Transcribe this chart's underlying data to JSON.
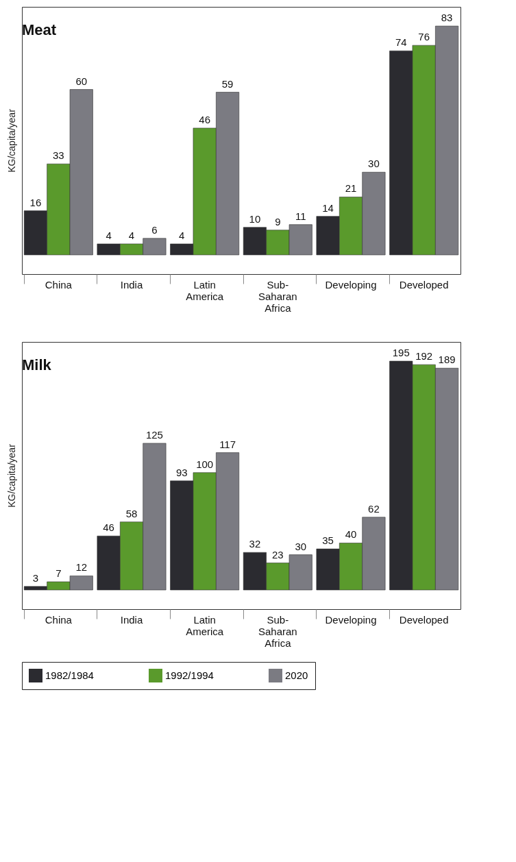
{
  "chart_data": [
    {
      "type": "bar",
      "title": "Meat",
      "ylabel": "KG/capita/year",
      "categories": [
        "China",
        "India",
        "Latin America",
        "Sub-Saharan Africa",
        "Developing",
        "Developed"
      ],
      "data_labels": true,
      "series": [
        {
          "color": "#2b2b30",
          "values": [
            16,
            4,
            4,
            10,
            14,
            74
          ]
        },
        {
          "color": "#5a9a2c",
          "values": [
            33,
            4,
            46,
            9,
            21,
            76
          ]
        },
        {
          "color": "#7b7b82",
          "values": [
            60,
            6,
            59,
            11,
            30,
            83
          ]
        }
      ]
    },
    {
      "type": "bar",
      "title": "Milk",
      "ylabel": "KG/capita/year",
      "categories": [
        "China",
        "India",
        "Latin America",
        "Sub-Saharan Africa",
        "Developing",
        "Developed"
      ],
      "data_labels": true,
      "legend": "bottom",
      "series": [
        {
          "name": "1982/1984",
          "color": "#2b2b30",
          "values": [
            3,
            46,
            93,
            32,
            35,
            195
          ]
        },
        {
          "name": "1992/1994",
          "color": "#5a9a2c",
          "values": [
            7,
            58,
            100,
            23,
            40,
            192
          ]
        },
        {
          "name": "2020",
          "color": "#7b7b82",
          "values": [
            12,
            125,
            117,
            30,
            62,
            189
          ]
        }
      ]
    }
  ]
}
